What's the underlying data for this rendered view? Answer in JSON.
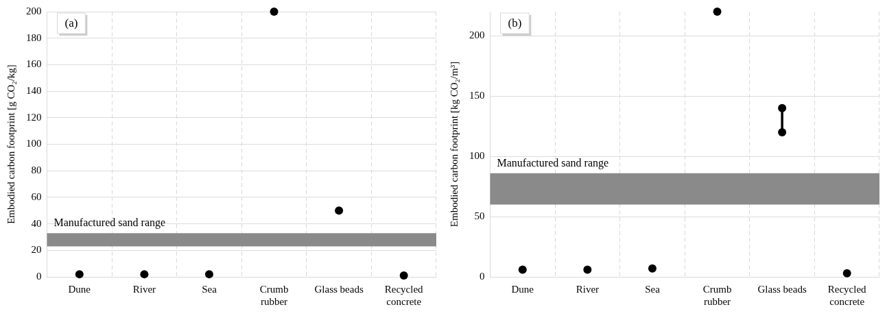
{
  "chart_data": [
    {
      "type": "scatter",
      "ylabel": "Embodied carbon footprint [g CO₂/kg]",
      "annotations": [
        "(a)"
      ],
      "categories": [
        "Dune",
        "River",
        "Sea",
        "Crumb rubber",
        "Glass beads",
        "Recycled concrete"
      ],
      "series": [
        {
          "color": "#000000",
          "values": [
            2,
            2,
            2,
            200,
            50,
            1
          ]
        }
      ],
      "ylim": [
        0,
        200
      ],
      "yticks": [
        0,
        20,
        40,
        60,
        80,
        100,
        120,
        140,
        160,
        180,
        200
      ],
      "bands": [
        {
          "axis": "y",
          "from": 23,
          "to": 33,
          "label": "Manufactured sand range",
          "color": "#8a8a8a"
        }
      ],
      "grid": true,
      "marker": "circle"
    },
    {
      "type": "scatter",
      "ylabel": "Embodied carbon footprint [kg CO₂/m³]",
      "annotations": [
        "(b)"
      ],
      "categories": [
        "Dune",
        "River",
        "Sea",
        "Crumb rubber",
        "Glass beads",
        "Recycled concrete"
      ],
      "series": [
        {
          "color": "#000000",
          "values": [
            6,
            6,
            7,
            220,
            null,
            3
          ]
        },
        {
          "type": "line",
          "color": "#000000",
          "x": [
            "Glass beads",
            "Glass beads"
          ],
          "values": [
            120,
            140
          ]
        }
      ],
      "ylim": [
        0,
        220
      ],
      "yticks": [
        0,
        50,
        100,
        150,
        200
      ],
      "bands": [
        {
          "axis": "y",
          "from": 60,
          "to": 86,
          "label": "Manufactured sand range",
          "color": "#8a8a8a"
        }
      ],
      "grid": true,
      "marker": "circle"
    }
  ]
}
